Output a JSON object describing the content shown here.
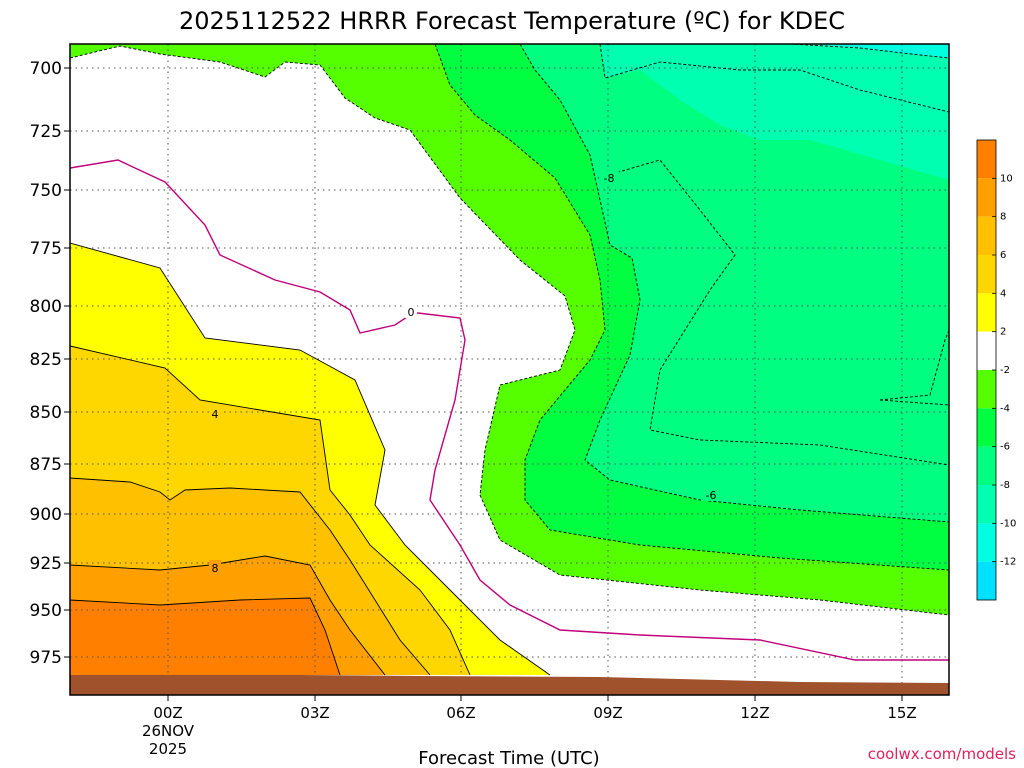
{
  "title": "2025112522 HRRR Forecast Temperature (ºC) for KDEC",
  "xlabel": "Forecast Time (UTC)",
  "credit": "coolwx.com/models",
  "date_label_day": "26NOV",
  "date_label_year": "2025",
  "colors": {
    "white": "#ffffff",
    "yellow": "#ffff00",
    "yellow_orange": "#ffd700",
    "orange_light": "#ffc000",
    "orange": "#ffa000",
    "orange_dark": "#ff8000",
    "green_lime": "#55ff00",
    "green": "#00ff40",
    "green_mid": "#00ff80",
    "teal": "#00ffb0",
    "cyan_teal": "#00ffe0",
    "cyan": "#00e0ff",
    "ground": "#a0522d",
    "zero_line": "#c0007a"
  },
  "chart_data": {
    "type": "heatmap",
    "title": "2025112522 HRRR Forecast Temperature (ºC) for KDEC",
    "xlabel": "Forecast Time (UTC)",
    "ylabel": "",
    "x_ticks": [
      "00Z",
      "03Z",
      "06Z",
      "09Z",
      "12Z",
      "15Z"
    ],
    "y_ticks": [
      "700",
      "725",
      "750",
      "775",
      "800",
      "825",
      "850",
      "875",
      "900",
      "925",
      "950",
      "975"
    ],
    "x_range_hours": [
      -2,
      16
    ],
    "y_range_hpa": [
      690,
      990
    ],
    "colorbar": {
      "tick_labels": [
        "10",
        "8",
        "6",
        "4",
        "2",
        "-2",
        "-4",
        "-6",
        "-8",
        "-10",
        "-12"
      ],
      "bins": [
        {
          "from": 12,
          "to": 10,
          "color": "#ff8000"
        },
        {
          "from": 10,
          "to": 8,
          "color": "#ffa000"
        },
        {
          "from": 8,
          "to": 6,
          "color": "#ffc000"
        },
        {
          "from": 6,
          "to": 4,
          "color": "#ffd700"
        },
        {
          "from": 4,
          "to": 2,
          "color": "#ffff00"
        },
        {
          "from": 2,
          "to": -2,
          "color": "#ffffff"
        },
        {
          "from": -2,
          "to": -4,
          "color": "#55ff00"
        },
        {
          "from": -4,
          "to": -6,
          "color": "#00ff40"
        },
        {
          "from": -6,
          "to": -8,
          "color": "#00ff80"
        },
        {
          "from": -8,
          "to": -10,
          "color": "#00ffb0"
        },
        {
          "from": -10,
          "to": -12,
          "color": "#00ffe0"
        },
        {
          "from": -12,
          "to": -14,
          "color": "#00e0ff"
        }
      ]
    },
    "contour_labels": [
      "4",
      "8",
      "0",
      "-8",
      "-6"
    ]
  }
}
